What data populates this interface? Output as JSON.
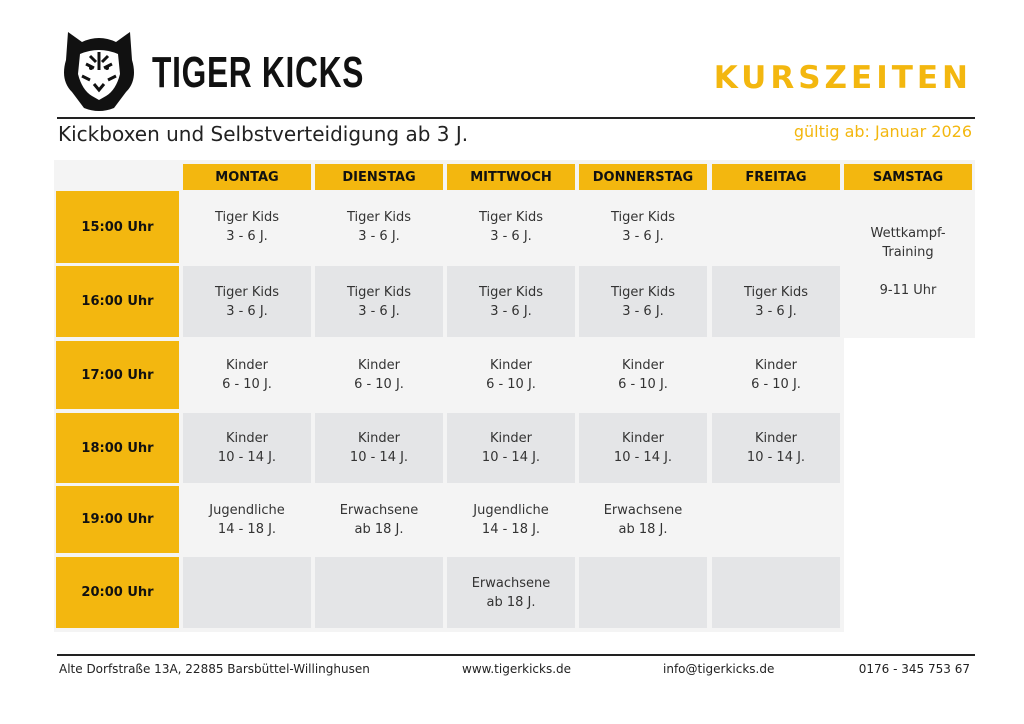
{
  "header": {
    "brand": "TIGER KICKS",
    "title": "KURSZEITEN",
    "subtitle": "Kickboxen und Selbstverteidigung ab 3 J.",
    "valid_from": "gültig ab: Januar 2026",
    "accent_color": "#f3b70f",
    "logo_icon": "tiger-head-icon"
  },
  "days": [
    "MONTAG",
    "DIENSTAG",
    "MITTWOCH",
    "DONNERSTAG",
    "FREITAG",
    "SAMSTAG"
  ],
  "rows": [
    {
      "time": "15:00 Uhr",
      "cells": [
        [
          "Tiger Kids",
          "3 - 6 J."
        ],
        [
          "Tiger Kids",
          "3 - 6 J."
        ],
        [
          "Tiger Kids",
          "3 - 6 J."
        ],
        [
          "Tiger Kids",
          "3 - 6 J."
        ],
        []
      ]
    },
    {
      "time": "16:00 Uhr",
      "cells": [
        [
          "Tiger Kids",
          "3 - 6 J."
        ],
        [
          "Tiger Kids",
          "3 - 6 J."
        ],
        [
          "Tiger Kids",
          "3 - 6 J."
        ],
        [
          "Tiger Kids",
          "3 - 6 J."
        ],
        [
          "Tiger Kids",
          "3 - 6 J."
        ]
      ]
    },
    {
      "time": "17:00 Uhr",
      "cells": [
        [
          "Kinder",
          "6 - 10 J."
        ],
        [
          "Kinder",
          "6 - 10 J."
        ],
        [
          "Kinder",
          "6 - 10 J."
        ],
        [
          "Kinder",
          "6 - 10 J."
        ],
        [
          "Kinder",
          "6 - 10 J."
        ]
      ]
    },
    {
      "time": "18:00 Uhr",
      "cells": [
        [
          "Kinder",
          "10 - 14 J."
        ],
        [
          "Kinder",
          "10 - 14 J."
        ],
        [
          "Kinder",
          "10 - 14 J."
        ],
        [
          "Kinder",
          "10 - 14 J."
        ],
        [
          "Kinder",
          "10 - 14 J."
        ]
      ]
    },
    {
      "time": "19:00 Uhr",
      "cells": [
        [
          "Jugendliche",
          "14 - 18 J."
        ],
        [
          "Erwachsene",
          "ab 18 J."
        ],
        [
          "Jugendliche",
          "14 - 18 J."
        ],
        [
          "Erwachsene",
          "ab 18 J."
        ],
        []
      ]
    },
    {
      "time": "20:00 Uhr",
      "cells": [
        [],
        [],
        [
          "Erwachsene",
          "ab 18 J."
        ],
        [],
        []
      ]
    }
  ],
  "saturday": {
    "line1": "Wettkampf-",
    "line2": "Training",
    "time": "9-11 Uhr"
  },
  "footer": {
    "address": "Alte Dorfstraße 13A, 22885 Barsbüttel-Willinghusen",
    "website": "www.tigerkicks.de",
    "email": "info@tigerkicks.de",
    "phone": "0176 - 345 753 67"
  }
}
